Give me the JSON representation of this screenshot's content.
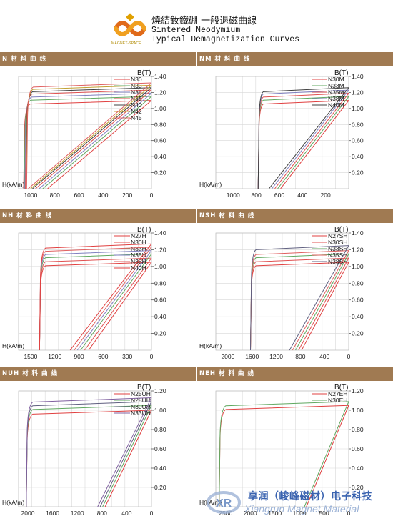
{
  "header": {
    "title_cn": "燒結釹鐵硼  一般退磁曲線",
    "title_en_line1": "Sintered Neodymium",
    "title_en_line2": "Typical Demagnetization Curves",
    "logo_text": "MAGNET-SPACE"
  },
  "watermark": {
    "cn": "享润（峻峰磁材）电子科技",
    "en": "Xiangrun Magnet Material"
  },
  "chart_data": [
    {
      "type": "line",
      "title": "N 材 料 曲 线",
      "xlabel": "H(kA/m)",
      "ylabel": "B(T)",
      "xlim": [
        1100,
        0
      ],
      "ylim": [
        0,
        1.4
      ],
      "xticks": [
        1000,
        800,
        600,
        400,
        200,
        0
      ],
      "yticks": [
        0.2,
        0.4,
        0.6,
        0.8,
        1.0,
        1.2,
        1.4
      ],
      "grid": true,
      "legend_position": "top-right",
      "series": [
        {
          "name": "N30",
          "color": "#e04040",
          "Br": 1.1,
          "Hcb": 1045,
          "Hcj": 1045,
          "line_x0": 860,
          "line_b0": 1.1
        },
        {
          "name": "N33",
          "color": "#60a860",
          "Br": 1.15,
          "Hcb": 1040,
          "Hcj": 1040,
          "line_x0": 900,
          "line_b0": 1.15
        },
        {
          "name": "N35",
          "color": "#8080c0",
          "Br": 1.19,
          "Hcb": 1035,
          "Hcj": 1035,
          "line_x0": 930,
          "line_b0": 1.19
        },
        {
          "name": "N38",
          "color": "#e05050",
          "Br": 1.23,
          "Hcb": 1030,
          "Hcj": 1030,
          "line_x0": 960,
          "line_b0": 1.23
        },
        {
          "name": "N40",
          "color": "#404040",
          "Br": 1.26,
          "Hcb": 1025,
          "Hcj": 1025,
          "line_x0": 985,
          "line_b0": 1.26
        },
        {
          "name": "N42",
          "color": "#c0a030",
          "Br": 1.29,
          "Hcb": 1022,
          "Hcj": 1022,
          "line_x0": 1000,
          "line_b0": 1.29
        },
        {
          "name": "N45",
          "color": "#e06060",
          "Br": 1.32,
          "Hcb": 1020,
          "Hcj": 1020,
          "line_x0": 1020,
          "line_b0": 1.32
        }
      ]
    },
    {
      "type": "line",
      "title": "NM 材 料 曲 线",
      "xlabel": "H(kA/m)",
      "ylabel": "B(T)",
      "xlim": [
        1150,
        0
      ],
      "ylim": [
        0,
        1.4
      ],
      "xticks": [
        1000,
        800,
        600,
        400,
        200
      ],
      "yticks": [
        0.2,
        0.4,
        0.6,
        0.8,
        1.0,
        1.2,
        1.4
      ],
      "grid": true,
      "legend_position": "top-right",
      "series": [
        {
          "name": "N30M",
          "color": "#e04040",
          "Br": 1.1,
          "Hcj": 770,
          "line_x0": 590,
          "line_b0": 1.1
        },
        {
          "name": "N33M",
          "color": "#60a860",
          "Br": 1.15,
          "Hcj": 770,
          "line_x0": 615,
          "line_b0": 1.15
        },
        {
          "name": "N35M",
          "color": "#e05050",
          "Br": 1.19,
          "Hcj": 770,
          "line_x0": 640,
          "line_b0": 1.19
        },
        {
          "name": "N38M",
          "color": "#8080c0",
          "Br": 1.23,
          "Hcj": 770,
          "line_x0": 665,
          "line_b0": 1.23
        },
        {
          "name": "N40M",
          "color": "#404040",
          "Br": 1.26,
          "Hcj": 770,
          "line_x0": 690,
          "line_b0": 1.26
        }
      ]
    },
    {
      "type": "line",
      "title": "NH 材 料 曲 线",
      "xlabel": "H(kA/m)",
      "ylabel": "B(T)",
      "xlim": [
        1650,
        0
      ],
      "ylim": [
        0,
        1.4
      ],
      "xticks": [
        1500,
        1200,
        900,
        600,
        300,
        0
      ],
      "yticks": [
        0.2,
        0.4,
        0.6,
        0.8,
        1.0,
        1.2,
        1.4
      ],
      "grid": true,
      "legend_position": "top-right",
      "series": [
        {
          "name": "N27H",
          "color": "#e04040",
          "Br": 1.05,
          "Hcj": 1370,
          "line_x0": 780,
          "line_b0": 1.05
        },
        {
          "name": "N30H",
          "color": "#e05050",
          "Br": 1.1,
          "Hcj": 1370,
          "line_x0": 830,
          "line_b0": 1.1
        },
        {
          "name": "N33H",
          "color": "#60a860",
          "Br": 1.15,
          "Hcj": 1370,
          "line_x0": 880,
          "line_b0": 1.15
        },
        {
          "name": "N35H",
          "color": "#8080c0",
          "Br": 1.19,
          "Hcj": 1370,
          "line_x0": 920,
          "line_b0": 1.19
        },
        {
          "name": "N38H",
          "color": "#e06060",
          "Br": 1.23,
          "Hcj": 1370,
          "line_x0": 960,
          "line_b0": 1.23
        },
        {
          "name": "N40H",
          "color": "#e04040",
          "Br": 1.27,
          "Hcj": 1370,
          "line_x0": 1010,
          "line_b0": 1.27
        }
      ]
    },
    {
      "type": "line",
      "title": "NSH 材 料 曲 线",
      "xlabel": "H(kA/m)",
      "ylabel": "B(T)",
      "xlim": [
        2200,
        0
      ],
      "ylim": [
        0,
        1.4
      ],
      "xticks": [
        2000,
        1600,
        1200,
        800,
        400,
        0
      ],
      "yticks": [
        0.2,
        0.4,
        0.6,
        0.8,
        1.0,
        1.2,
        1.4
      ],
      "grid": true,
      "legend_position": "top-right",
      "series": [
        {
          "name": "N27SH",
          "color": "#e04040",
          "Br": 1.05,
          "Hcj": 1600,
          "line_x0": 780,
          "line_b0": 1.05
        },
        {
          "name": "N30SH",
          "color": "#e05050",
          "Br": 1.1,
          "Hcj": 1600,
          "line_x0": 830,
          "line_b0": 1.1
        },
        {
          "name": "N33SH",
          "color": "#60a860",
          "Br": 1.15,
          "Hcj": 1600,
          "line_x0": 880,
          "line_b0": 1.15
        },
        {
          "name": "N35SH",
          "color": "#e06060",
          "Br": 1.19,
          "Hcj": 1600,
          "line_x0": 930,
          "line_b0": 1.19
        },
        {
          "name": "N38SH",
          "color": "#606080",
          "Br": 1.25,
          "Hcj": 1600,
          "line_x0": 980,
          "line_b0": 1.25
        }
      ]
    },
    {
      "type": "line",
      "title": "NUH 材 料 曲 线",
      "xlabel": "H(kA/m)",
      "ylabel": "B(T)",
      "xlim": [
        2150,
        0
      ],
      "ylim": [
        0,
        1.2
      ],
      "xticks": [
        2000,
        1600,
        1200,
        800,
        400,
        0
      ],
      "yticks": [
        0.2,
        0.4,
        0.6,
        0.8,
        1.0,
        1.2
      ],
      "grid": true,
      "legend_position": "top-right",
      "series": [
        {
          "name": "N25UH",
          "color": "#e04040",
          "Br": 1.0,
          "Hcj": 2000,
          "line_x0": 750,
          "line_b0": 1.0
        },
        {
          "name": "N28UH",
          "color": "#60a860",
          "Br": 1.05,
          "Hcj": 2000,
          "line_x0": 790,
          "line_b0": 1.05
        },
        {
          "name": "N30UH",
          "color": "#606080",
          "Br": 1.09,
          "Hcj": 2000,
          "line_x0": 830,
          "line_b0": 1.09
        },
        {
          "name": "N33UH",
          "color": "#8060a0",
          "Br": 1.13,
          "Hcj": 2000,
          "line_x0": 870,
          "line_b0": 1.13
        }
      ]
    },
    {
      "type": "line",
      "title": "NEH 材 料 曲 线",
      "xlabel": "H(kA/m)",
      "ylabel": "B(T)",
      "xlim": [
        2700,
        0
      ],
      "ylim": [
        0,
        1.2
      ],
      "xticks": [
        2500,
        2000,
        1500,
        1000,
        500,
        0
      ],
      "yticks": [
        0.2,
        0.4,
        0.6,
        0.8,
        1.0,
        1.2
      ],
      "grid": true,
      "legend_position": "top-right",
      "series": [
        {
          "name": "N27EH",
          "color": "#e04040",
          "Br": 1.05,
          "Hcj": 2600,
          "line_x0": 860,
          "line_b0": 1.05
        },
        {
          "name": "N30EH",
          "color": "#60a860",
          "Br": 1.09,
          "Hcj": 2600,
          "line_x0": 900,
          "line_b0": 1.09
        }
      ]
    }
  ]
}
